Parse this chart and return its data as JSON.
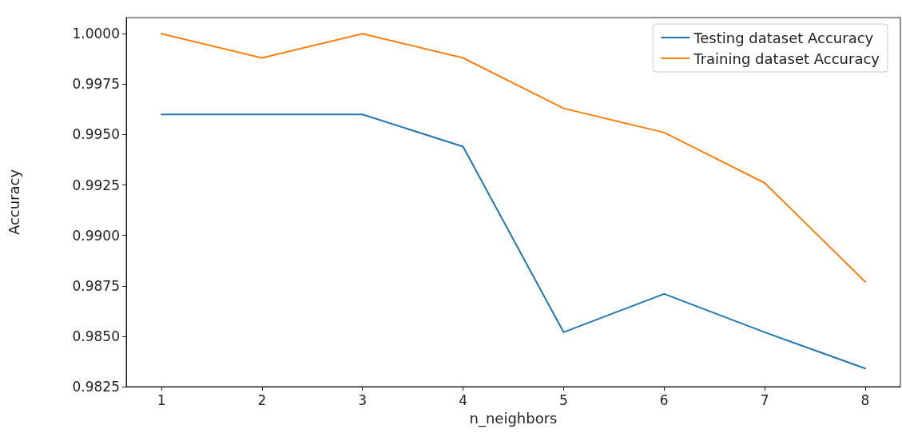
{
  "chart_data": {
    "type": "line",
    "xlabel": "n_neighbors",
    "ylabel": "Accuracy",
    "x": [
      1,
      2,
      3,
      4,
      5,
      6,
      7,
      8
    ],
    "series": [
      {
        "name": "Testing dataset Accuracy",
        "color": "#1f77b4",
        "values": [
          0.996,
          0.996,
          0.996,
          0.9944,
          0.9852,
          0.9871,
          0.9852,
          0.9834
        ]
      },
      {
        "name": "Training dataset Accuracy",
        "color": "#ff7f0e",
        "values": [
          1.0,
          0.9988,
          1.0,
          0.9988,
          0.9963,
          0.9951,
          0.9926,
          0.9877
        ]
      }
    ],
    "xlim": [
      0.65,
      8.35
    ],
    "xticks": [
      1,
      2,
      3,
      4,
      5,
      6,
      7,
      8
    ],
    "ylim": [
      0.9825,
      1.0008
    ],
    "yticks": [
      {
        "value": 0.9825,
        "label": "0.9825"
      },
      {
        "value": 0.985,
        "label": "0.9850"
      },
      {
        "value": 0.9875,
        "label": "0.9875"
      },
      {
        "value": 0.99,
        "label": "0.9900"
      },
      {
        "value": 0.9925,
        "label": "0.9925"
      },
      {
        "value": 0.995,
        "label": "0.9950"
      },
      {
        "value": 0.9975,
        "label": "0.9975"
      },
      {
        "value": 1.0,
        "label": "1.0000"
      }
    ],
    "grid": false,
    "legend": "top right",
    "marker": "none",
    "line_style": "solid"
  }
}
